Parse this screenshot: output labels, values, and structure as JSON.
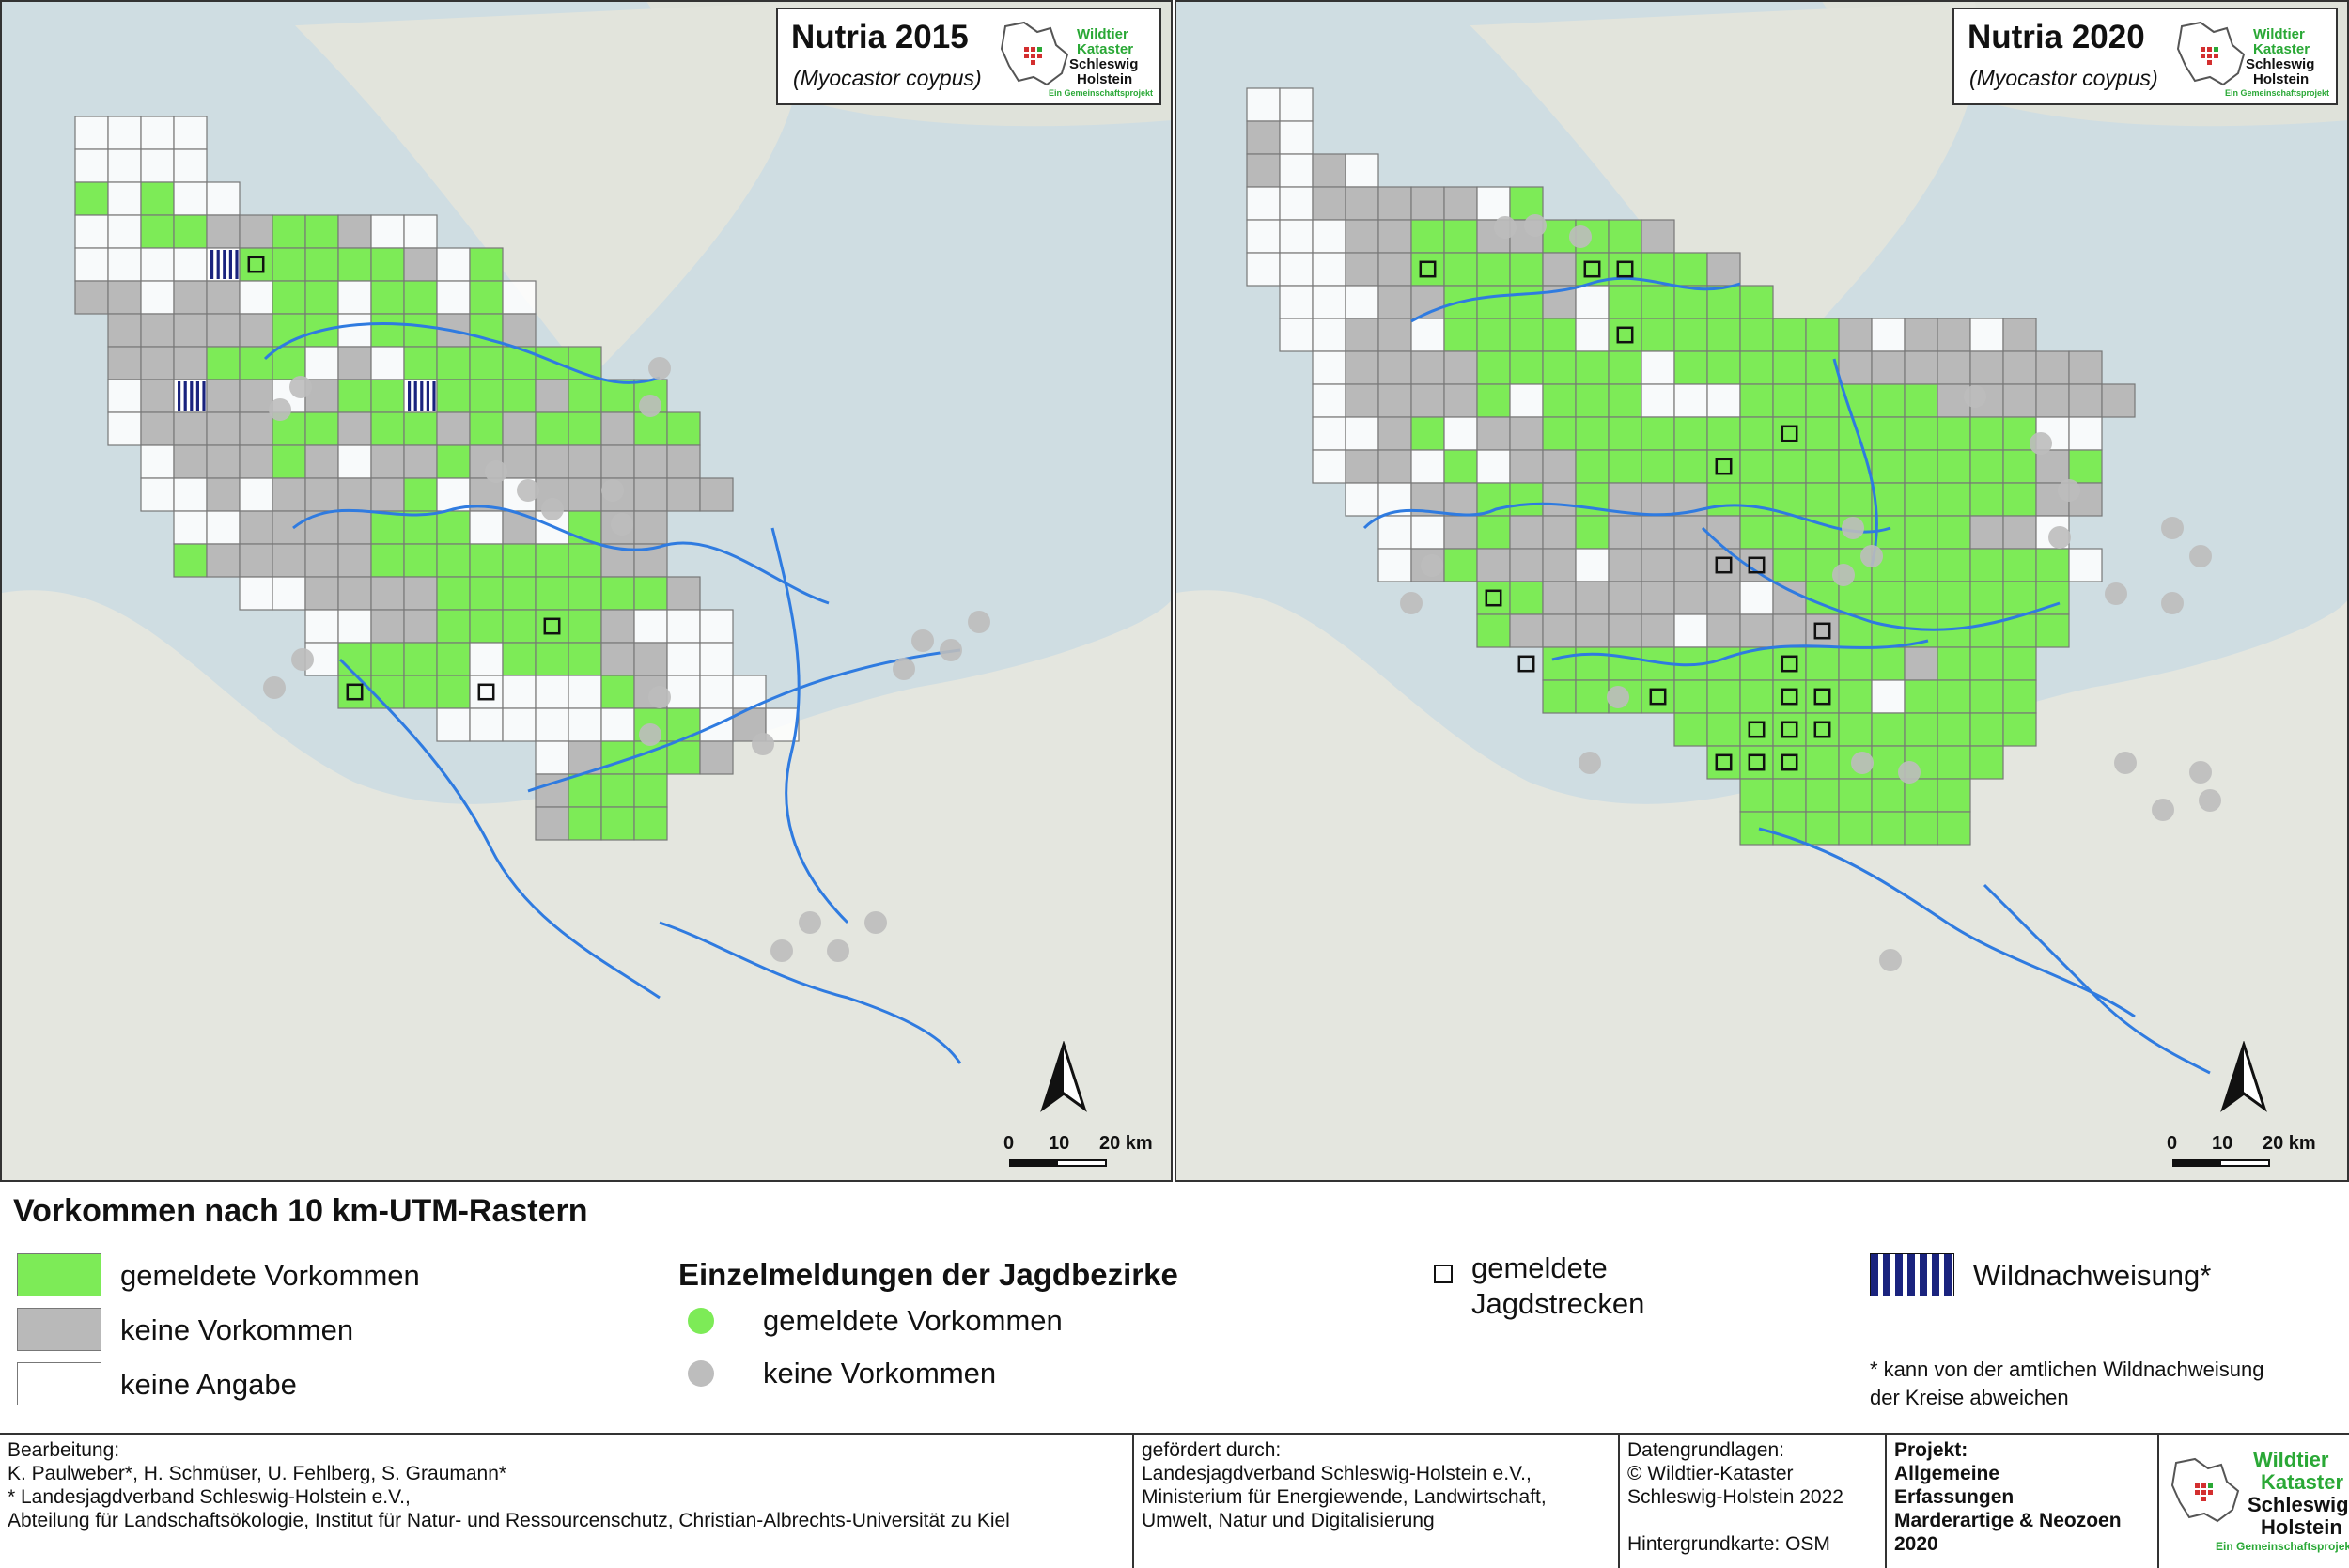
{
  "maps": [
    {
      "title": "Nutria 2015",
      "species": "(Myocastor coypus)",
      "scale": {
        "zero": "0",
        "mid": "10",
        "end": "20 km"
      }
    },
    {
      "title": "Nutria 2020",
      "species": "(Myocastor coypus)",
      "scale": {
        "zero": "0",
        "mid": "10",
        "end": "20 km"
      }
    }
  ],
  "logo": {
    "line1": "Wildtier",
    "line2": "Kataster",
    "line3": "Schleswig",
    "line4": "Holstein",
    "line5": "Ein Gemeinschaftsprojekt"
  },
  "legend": {
    "title": "Vorkommen nach 10 km-UTM-Rastern",
    "grid_present": "gemeldete Vorkommen",
    "grid_absent": "keine Vorkommen",
    "grid_nodata": "keine Angabe",
    "district_title": "Einzelmeldungen der Jagdbezirke",
    "district_present": "gemeldete Vorkommen",
    "district_absent": "keine Vorkommen",
    "hunting_line1": "gemeldete",
    "hunting_line2": "Jagdstrecken",
    "wild": "Wildnachweisung*",
    "note_line1": "* kann von der amtlichen Wildnachweisung",
    "note_line2": "der Kreise abweichen",
    "colors": {
      "present": "#7deb57",
      "absent": "#b9b9b9",
      "nodata": "#ffffff",
      "hatch": "#1a237e"
    }
  },
  "footer": {
    "author": [
      "Bearbeitung:",
      "K. Paulweber*, H. Schmüser, U. Fehlberg, S. Graumann*",
      "* Landesjagdverband Schleswig-Holstein e.V.,",
      "Abteilung für Landschaftsökologie, Institut für Natur- und Ressourcenschutz, Christian-Albrechts-Universität zu Kiel"
    ],
    "funding": [
      "gefördert durch:",
      "Landesjagdverband Schleswig-Holstein e.V.,",
      "Ministerium für Energiewende, Landwirtschaft,",
      "Umwelt, Natur und Digitalisierung"
    ],
    "data": [
      "Datengrundlagen:",
      "© Wildtier-Kataster",
      "Schleswig-Holstein 2022",
      "",
      "Hintergrundkarte: OSM"
    ],
    "project": [
      "Projekt:",
      "Allgemeine",
      "Erfassungen",
      "Marderartige & Neozoen",
      "2020"
    ]
  }
}
